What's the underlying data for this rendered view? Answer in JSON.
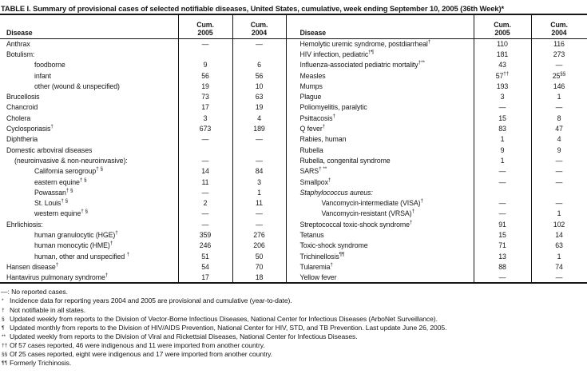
{
  "title": "TABLE I. Summary of provisional cases of selected notifiable diseases, United States, cumulative, week ending September 10, 2005 (36th Week)*",
  "colors": {
    "text": "#161616",
    "border": "#161616",
    "background": "#ffffff"
  },
  "table": {
    "headers": {
      "disease": "Disease",
      "cum": "Cum.",
      "y2005": "2005",
      "y2004": "2004"
    },
    "rows": [
      {
        "left": {
          "label": "Anthrax",
          "indent": 0,
          "c2005": "—",
          "c2004": "—"
        },
        "right": {
          "label": "Hemolytic uremic syndrome, postdiarrheal",
          "sup": "†",
          "indent": 0,
          "c2005": "110",
          "c2004": "116"
        }
      },
      {
        "left": {
          "label": "Botulism:",
          "indent": 0,
          "c2005": "",
          "c2004": ""
        },
        "right": {
          "label": "HIV infection, pediatric",
          "sup": "†¶",
          "indent": 0,
          "c2005": "181",
          "c2004": "273"
        }
      },
      {
        "left": {
          "label": "foodborne",
          "indent": 2,
          "c2005": "9",
          "c2004": "6"
        },
        "right": {
          "label": "Influenza-associated pediatric mortality",
          "sup": "†**",
          "indent": 0,
          "c2005": "43",
          "c2004": "—"
        }
      },
      {
        "left": {
          "label": "infant",
          "indent": 2,
          "c2005": "56",
          "c2004": "56"
        },
        "right": {
          "label": "Measles",
          "indent": 0,
          "c2005": "57",
          "c2005_sup": "††",
          "c2004": "25",
          "c2004_sup": "§§"
        }
      },
      {
        "left": {
          "label": "other (wound & unspecified)",
          "indent": 2,
          "c2005": "19",
          "c2004": "10"
        },
        "right": {
          "label": "Mumps",
          "indent": 0,
          "c2005": "193",
          "c2004": "146"
        }
      },
      {
        "left": {
          "label": "Brucellosis",
          "indent": 0,
          "c2005": "73",
          "c2004": "63"
        },
        "right": {
          "label": "Plague",
          "indent": 0,
          "c2005": "3",
          "c2004": "1"
        }
      },
      {
        "left": {
          "label": "Chancroid",
          "indent": 0,
          "c2005": "17",
          "c2004": "19"
        },
        "right": {
          "label": "Poliomyelitis, paralytic",
          "indent": 0,
          "c2005": "—",
          "c2004": "—"
        }
      },
      {
        "left": {
          "label": "Cholera",
          "indent": 0,
          "c2005": "3",
          "c2004": "4"
        },
        "right": {
          "label": "Psittacosis",
          "sup": "†",
          "indent": 0,
          "c2005": "15",
          "c2004": "8"
        }
      },
      {
        "left": {
          "label": "Cyclosporiasis",
          "sup": "†",
          "indent": 0,
          "c2005": "673",
          "c2004": "189"
        },
        "right": {
          "label": "Q fever",
          "sup": "†",
          "indent": 0,
          "c2005": "83",
          "c2004": "47"
        }
      },
      {
        "left": {
          "label": "Diphtheria",
          "indent": 0,
          "c2005": "—",
          "c2004": "—"
        },
        "right": {
          "label": "Rabies, human",
          "indent": 0,
          "c2005": "1",
          "c2004": "4"
        }
      },
      {
        "left": {
          "label": "Domestic arboviral diseases",
          "indent": 0,
          "c2005": "",
          "c2004": ""
        },
        "right": {
          "label": "Rubella",
          "indent": 0,
          "c2005": "9",
          "c2004": "9"
        }
      },
      {
        "left": {
          "label": "(neuroinvasive & non-neuroinvasive):",
          "indent": 1,
          "c2005": "—",
          "c2004": "—"
        },
        "right": {
          "label": "Rubella, congenital syndrome",
          "indent": 0,
          "c2005": "1",
          "c2004": "—"
        }
      },
      {
        "left": {
          "label": "California serogroup",
          "sup": "† §",
          "indent": 2,
          "c2005": "14",
          "c2004": "84"
        },
        "right": {
          "label": "SARS",
          "sup": "† **",
          "indent": 0,
          "c2005": "—",
          "c2004": "—"
        }
      },
      {
        "left": {
          "label": "eastern equine",
          "sup": "† §",
          "indent": 2,
          "c2005": "11",
          "c2004": "3"
        },
        "right": {
          "label": "Smallpox",
          "sup": "†",
          "indent": 0,
          "c2005": "—",
          "c2004": "—"
        }
      },
      {
        "left": {
          "label": "Powassan",
          "sup": "† §",
          "indent": 2,
          "c2005": "—",
          "c2004": "1"
        },
        "right": {
          "label": "Staphylococcus aureus:",
          "italic": true,
          "indent": 0,
          "c2005": "",
          "c2004": ""
        }
      },
      {
        "left": {
          "label": "St. Louis",
          "sup": "† §",
          "indent": 2,
          "c2005": "2",
          "c2004": "11"
        },
        "right": {
          "label": "Vancomycin-intermediate (VISA)",
          "sup": "†",
          "indent": 2,
          "c2005": "—",
          "c2004": "—"
        }
      },
      {
        "left": {
          "label": "western equine",
          "sup": "† §",
          "indent": 2,
          "c2005": "—",
          "c2004": "—"
        },
        "right": {
          "label": "Vancomycin-resistant (VRSA)",
          "sup": "†",
          "indent": 2,
          "c2005": "—",
          "c2004": "1"
        }
      },
      {
        "left": {
          "label": "Ehrlichiosis:",
          "indent": 0,
          "c2005": "—",
          "c2004": "—"
        },
        "right": {
          "label": "Streptococcal toxic-shock syndrome",
          "sup": "†",
          "indent": 0,
          "c2005": "91",
          "c2004": "102"
        }
      },
      {
        "left": {
          "label": "human granulocytic (HGE)",
          "sup": "†",
          "indent": 2,
          "c2005": "359",
          "c2004": "276"
        },
        "right": {
          "label": "Tetanus",
          "indent": 0,
          "c2005": "15",
          "c2004": "14"
        }
      },
      {
        "left": {
          "label": "human monocytic (HME)",
          "sup": "†",
          "indent": 2,
          "c2005": "246",
          "c2004": "206"
        },
        "right": {
          "label": "Toxic-shock syndrome",
          "indent": 0,
          "c2005": "71",
          "c2004": "63"
        }
      },
      {
        "left": {
          "label": "human, other and unspecified ",
          "sup": "†",
          "indent": 2,
          "c2005": "51",
          "c2004": "50"
        },
        "right": {
          "label": "Trichinellosis",
          "sup": "¶¶",
          "indent": 0,
          "c2005": "13",
          "c2004": "1"
        }
      },
      {
        "left": {
          "label": "Hansen disease",
          "sup": "†",
          "indent": 0,
          "c2005": "54",
          "c2004": "70"
        },
        "right": {
          "label": "Tularemia",
          "sup": "†",
          "indent": 0,
          "c2005": "88",
          "c2004": "74"
        }
      },
      {
        "left": {
          "label": "Hantavirus pulmonary syndrome",
          "sup": "†",
          "indent": 0,
          "c2005": "17",
          "c2004": "18"
        },
        "right": {
          "label": "Yellow fever",
          "indent": 0,
          "c2005": "—",
          "c2004": "—"
        }
      }
    ]
  },
  "footnotes": [
    {
      "marker": "—:",
      "raised": false,
      "text": "No reported cases."
    },
    {
      "marker": "*",
      "raised": true,
      "text": "Incidence data for reporting years 2004 and 2005 are provisional and cumulative (year-to-date)."
    },
    {
      "marker": "†",
      "raised": true,
      "text": "Not notifiable in all states."
    },
    {
      "marker": "§",
      "raised": true,
      "text": "Updated weekly from reports to the Division of Vector-Borne Infectious Diseases, National Center for Infectious Diseases (ArboNet Surveillance)."
    },
    {
      "marker": "¶",
      "raised": true,
      "text": "Updated monthly from reports to the Division of HIV/AIDS Prevention, National Center for HIV, STD, and TB Prevention. Last update June 26, 2005."
    },
    {
      "marker": "**",
      "raised": true,
      "text": "Updated weekly from reports to the Division of Viral and Rickettsial Diseases, National Center for Infectious Diseases."
    },
    {
      "marker": "††",
      "raised": true,
      "text": "Of 57 cases reported, 46 were indigenous and 11 were imported from another country."
    },
    {
      "marker": "§§",
      "raised": true,
      "text": "Of 25 cases reported, eight were indigenous and 17 were imported from another country."
    },
    {
      "marker": "¶¶",
      "raised": true,
      "text": "Formerly Trichinosis."
    }
  ]
}
